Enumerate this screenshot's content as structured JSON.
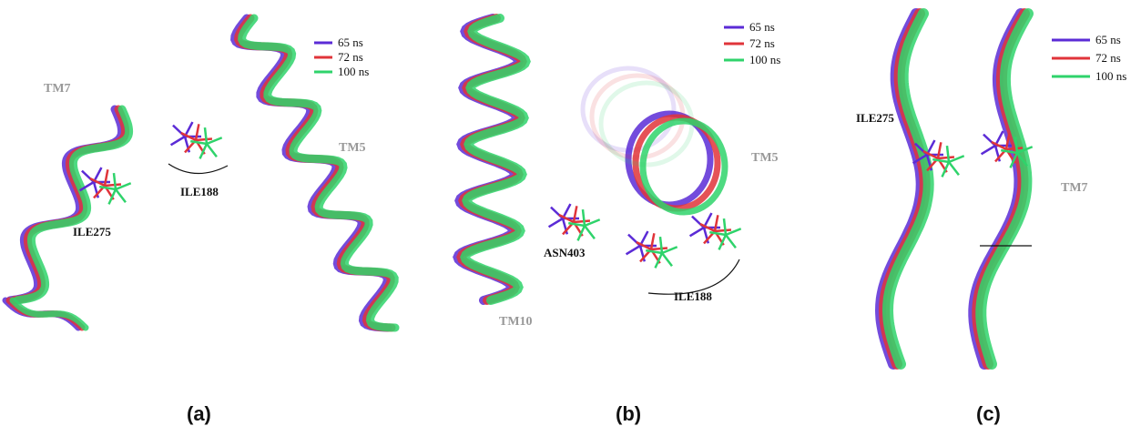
{
  "panels": [
    {
      "caption": "(a)",
      "legend": [
        {
          "label": "65 ns",
          "color": "#5b2bd6"
        },
        {
          "label": "72 ns",
          "color": "#e0343a"
        },
        {
          "label": "100 ns",
          "color": "#2fd36b"
        }
      ],
      "labels": [
        "TM7",
        "ILE188",
        "TM5",
        "ILE275"
      ]
    },
    {
      "caption": "(b)",
      "legend": [
        {
          "label": "65 ns",
          "color": "#5b2bd6"
        },
        {
          "label": "72 ns",
          "color": "#e0343a"
        },
        {
          "label": "100 ns",
          "color": "#2fd36b"
        }
      ],
      "labels": [
        "TM5",
        "ASN403",
        "TM10",
        "ILE188"
      ]
    },
    {
      "caption": "(c)",
      "legend": [
        {
          "label": "65 ns",
          "color": "#5b2bd6"
        },
        {
          "label": "72 ns",
          "color": "#e0343a"
        },
        {
          "label": "100 ns",
          "color": "#2fd36b"
        }
      ],
      "labels": [
        "ILE275",
        "TM7"
      ]
    }
  ]
}
